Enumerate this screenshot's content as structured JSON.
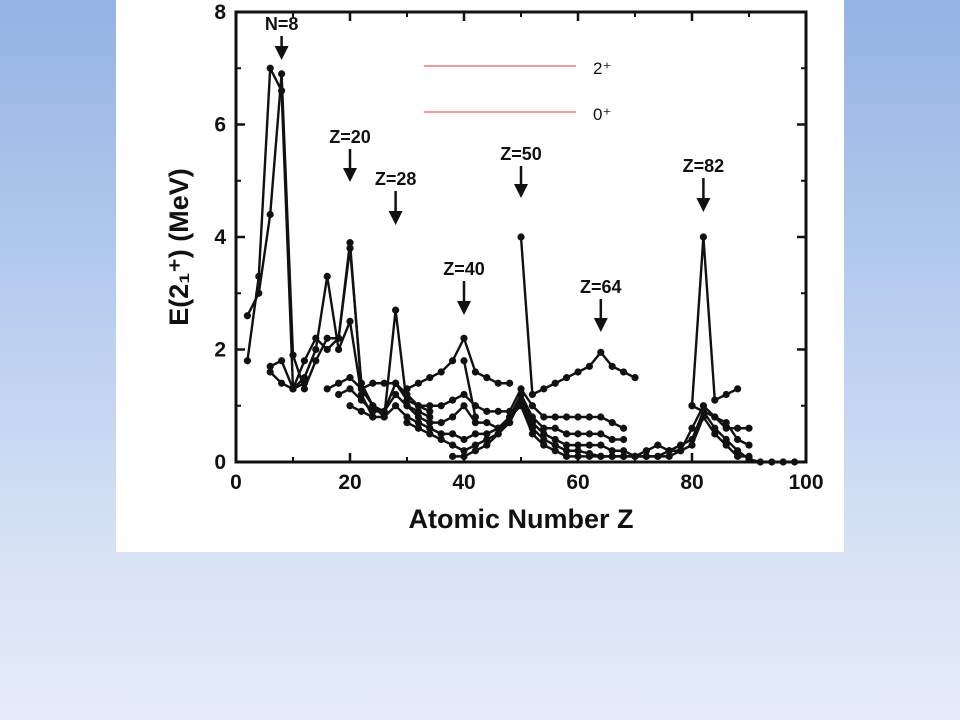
{
  "chart_data": {
    "type": "line",
    "xlabel": "Atomic Number Z",
    "ylabel": "E(2₁⁺) (MeV)",
    "xlim": [
      0,
      100
    ],
    "ylim": [
      0,
      8
    ],
    "x_ticks": [
      "0",
      "20",
      "40",
      "60",
      "80",
      "100"
    ],
    "y_ticks": [
      "0",
      "2",
      "4",
      "6",
      "8"
    ],
    "grid": false,
    "legend": [
      {
        "label": "2⁺",
        "color": "#e06060"
      },
      {
        "label": "0⁺",
        "color": "#e06060"
      }
    ],
    "annotations": [
      {
        "text": "N=8",
        "x": 8
      },
      {
        "text": "Z=20",
        "x": 20
      },
      {
        "text": "Z=28",
        "x": 28
      },
      {
        "text": "Z=40",
        "x": 40
      },
      {
        "text": "Z=50",
        "x": 50
      },
      {
        "text": "Z=64",
        "x": 64
      },
      {
        "text": "Z=82",
        "x": 82
      }
    ],
    "series": [
      {
        "points": [
          [
            2,
            2.6
          ],
          [
            4,
            3.0
          ],
          [
            6,
            4.4
          ],
          [
            8,
            6.9
          ],
          [
            10,
            1.9
          ],
          [
            12,
            1.3
          ],
          [
            14,
            1.8
          ],
          [
            16,
            2.2
          ],
          [
            18,
            2.2
          ],
          [
            20,
            3.9
          ],
          [
            22,
            1.3
          ],
          [
            24,
            1.4
          ],
          [
            26,
            1.4
          ],
          [
            28,
            1.4
          ],
          [
            30,
            1.1
          ],
          [
            32,
            1.0
          ],
          [
            34,
            0.9
          ]
        ]
      },
      {
        "points": [
          [
            2,
            1.8
          ],
          [
            4,
            3.3
          ],
          [
            6,
            7.0
          ],
          [
            8,
            6.6
          ],
          [
            10,
            1.3
          ],
          [
            12,
            1.4
          ]
        ]
      },
      {
        "points": [
          [
            6,
            1.7
          ],
          [
            8,
            1.8
          ],
          [
            10,
            1.3
          ],
          [
            12,
            1.8
          ],
          [
            14,
            2.2
          ],
          [
            16,
            2.0
          ],
          [
            18,
            2.2
          ],
          [
            20,
            3.8
          ],
          [
            22,
            1.4
          ],
          [
            24,
            1.0
          ],
          [
            26,
            0.8
          ],
          [
            28,
            2.7
          ],
          [
            30,
            1.0
          ],
          [
            32,
            0.9
          ],
          [
            34,
            0.8
          ]
        ]
      },
      {
        "points": [
          [
            6,
            1.6
          ],
          [
            8,
            1.4
          ],
          [
            10,
            1.3
          ],
          [
            12,
            1.5
          ],
          [
            14,
            2.0
          ],
          [
            16,
            3.3
          ],
          [
            18,
            2.0
          ],
          [
            20,
            2.5
          ],
          [
            22,
            1.2
          ],
          [
            24,
            0.8
          ]
        ]
      },
      {
        "points": [
          [
            16,
            1.3
          ],
          [
            18,
            1.4
          ],
          [
            20,
            1.5
          ],
          [
            22,
            1.3
          ],
          [
            24,
            1.0
          ],
          [
            26,
            0.9
          ],
          [
            28,
            1.4
          ],
          [
            30,
            1.2
          ],
          [
            32,
            1.0
          ],
          [
            34,
            1.0
          ],
          [
            36,
            1.0
          ],
          [
            38,
            1.1
          ],
          [
            40,
            1.2
          ],
          [
            42,
            1.0
          ],
          [
            44,
            0.9
          ],
          [
            46,
            0.9
          ],
          [
            48,
            0.9
          ],
          [
            50,
            1.3
          ],
          [
            52,
            1.0
          ],
          [
            54,
            0.8
          ],
          [
            56,
            0.8
          ],
          [
            58,
            0.8
          ],
          [
            60,
            0.8
          ],
          [
            62,
            0.8
          ],
          [
            64,
            0.8
          ],
          [
            66,
            0.7
          ],
          [
            68,
            0.6
          ]
        ]
      },
      {
        "points": [
          [
            18,
            1.2
          ],
          [
            20,
            1.3
          ],
          [
            22,
            1.1
          ],
          [
            24,
            0.9
          ],
          [
            26,
            0.9
          ],
          [
            28,
            1.2
          ],
          [
            30,
            1.0
          ],
          [
            32,
            0.8
          ],
          [
            34,
            0.7
          ],
          [
            36,
            0.7
          ],
          [
            38,
            0.8
          ],
          [
            40,
            1.0
          ],
          [
            42,
            0.7
          ],
          [
            44,
            0.7
          ],
          [
            46,
            0.6
          ],
          [
            48,
            0.8
          ],
          [
            50,
            1.2
          ],
          [
            52,
            0.8
          ],
          [
            54,
            0.6
          ],
          [
            56,
            0.6
          ],
          [
            58,
            0.5
          ],
          [
            60,
            0.5
          ],
          [
            62,
            0.5
          ],
          [
            64,
            0.5
          ],
          [
            66,
            0.4
          ],
          [
            68,
            0.4
          ]
        ]
      },
      {
        "points": [
          [
            20,
            1.0
          ],
          [
            22,
            0.9
          ],
          [
            24,
            0.8
          ],
          [
            26,
            0.8
          ],
          [
            28,
            1.0
          ],
          [
            30,
            0.8
          ],
          [
            32,
            0.7
          ],
          [
            34,
            0.6
          ],
          [
            36,
            0.5
          ],
          [
            38,
            0.5
          ],
          [
            40,
            0.4
          ],
          [
            42,
            0.5
          ],
          [
            44,
            0.5
          ],
          [
            46,
            0.6
          ],
          [
            48,
            0.7
          ],
          [
            50,
            1.2
          ],
          [
            52,
            0.7
          ],
          [
            54,
            0.5
          ],
          [
            56,
            0.4
          ],
          [
            58,
            0.3
          ],
          [
            60,
            0.3
          ],
          [
            62,
            0.3
          ],
          [
            64,
            0.3
          ],
          [
            66,
            0.2
          ],
          [
            68,
            0.2
          ],
          [
            70,
            0.1
          ],
          [
            72,
            0.1
          ],
          [
            74,
            0.1
          ],
          [
            76,
            0.1
          ],
          [
            78,
            0.2
          ],
          [
            80,
            0.3
          ],
          [
            82,
            0.8
          ],
          [
            84,
            0.5
          ],
          [
            86,
            0.3
          ],
          [
            88,
            0.1
          ],
          [
            90,
            0.1
          ]
        ]
      },
      {
        "points": [
          [
            30,
            0.7
          ],
          [
            32,
            0.6
          ],
          [
            34,
            0.5
          ],
          [
            36,
            0.4
          ],
          [
            38,
            0.3
          ],
          [
            40,
            0.2
          ],
          [
            42,
            0.3
          ],
          [
            44,
            0.4
          ],
          [
            46,
            0.5
          ],
          [
            48,
            0.7
          ],
          [
            50,
            1.1
          ],
          [
            52,
            0.6
          ],
          [
            54,
            0.4
          ],
          [
            56,
            0.3
          ],
          [
            58,
            0.2
          ],
          [
            60,
            0.2
          ],
          [
            62,
            0.15
          ],
          [
            64,
            0.1
          ],
          [
            66,
            0.1
          ],
          [
            68,
            0.1
          ],
          [
            70,
            0.1
          ],
          [
            72,
            0.1
          ],
          [
            74,
            0.1
          ],
          [
            76,
            0.2
          ],
          [
            78,
            0.3
          ],
          [
            80,
            0.4
          ],
          [
            82,
            0.9
          ],
          [
            84,
            0.6
          ],
          [
            86,
            0.4
          ],
          [
            88,
            0.2
          ],
          [
            90,
            0.05
          ],
          [
            92,
            0.0
          ],
          [
            94,
            0.0
          ],
          [
            96,
            0.0
          ],
          [
            98,
            0.0
          ]
        ]
      },
      {
        "points": [
          [
            38,
            0.1
          ],
          [
            40,
            0.1
          ],
          [
            42,
            0.2
          ],
          [
            44,
            0.3
          ],
          [
            46,
            0.5
          ],
          [
            48,
            0.8
          ],
          [
            50,
            1.0
          ],
          [
            52,
            0.5
          ],
          [
            54,
            0.3
          ],
          [
            56,
            0.2
          ],
          [
            58,
            0.1
          ],
          [
            60,
            0.1
          ],
          [
            62,
            0.1
          ],
          [
            64,
            0.1
          ],
          [
            66,
            0.1
          ],
          [
            68,
            0.1
          ],
          [
            70,
            0.1
          ],
          [
            72,
            0.2
          ],
          [
            74,
            0.3
          ],
          [
            76,
            0.2
          ],
          [
            78,
            0.2
          ],
          [
            80,
            0.6
          ],
          [
            82,
            1.0
          ],
          [
            84,
            0.8
          ],
          [
            86,
            0.6
          ],
          [
            88,
            0.6
          ],
          [
            90,
            0.6
          ]
        ]
      },
      {
        "points": [
          [
            80,
            1.0
          ],
          [
            82,
            0.9
          ],
          [
            84,
            0.8
          ],
          [
            86,
            0.7
          ],
          [
            88,
            0.4
          ],
          [
            90,
            0.3
          ]
        ]
      },
      {
        "points": [
          [
            30,
            1.3
          ],
          [
            32,
            1.4
          ],
          [
            34,
            1.5
          ],
          [
            36,
            1.6
          ],
          [
            38,
            1.8
          ],
          [
            40,
            2.2
          ],
          [
            42,
            1.6
          ],
          [
            44,
            1.5
          ],
          [
            46,
            1.4
          ],
          [
            48,
            1.4
          ]
        ]
      },
      {
        "points": [
          [
            40,
            1.8
          ],
          [
            42,
            0.8
          ]
        ]
      },
      {
        "points": [
          [
            50,
            4.0
          ],
          [
            52,
            1.2
          ],
          [
            54,
            1.3
          ],
          [
            56,
            1.4
          ],
          [
            58,
            1.5
          ],
          [
            60,
            1.6
          ],
          [
            62,
            1.7
          ],
          [
            64,
            1.95
          ],
          [
            66,
            1.7
          ],
          [
            68,
            1.6
          ],
          [
            70,
            1.5
          ]
        ]
      },
      {
        "points": [
          [
            80,
            1.0
          ],
          [
            82,
            4.0
          ],
          [
            84,
            1.1
          ],
          [
            86,
            1.2
          ],
          [
            88,
            1.3
          ]
        ]
      }
    ]
  }
}
